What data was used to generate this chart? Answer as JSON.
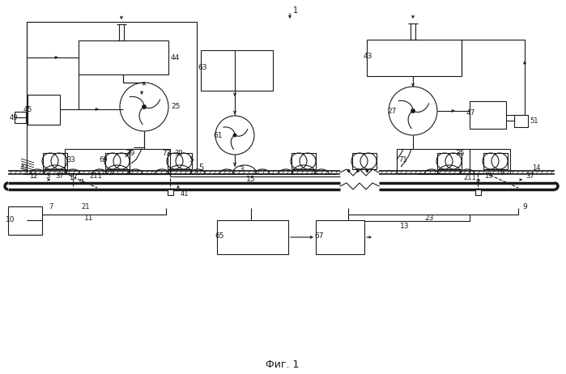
{
  "title": "Фиг. 1",
  "bg": "#ffffff",
  "lc": "#1a1a1a",
  "fig_w": 6.99,
  "fig_h": 4.62,
  "dpi": 100
}
